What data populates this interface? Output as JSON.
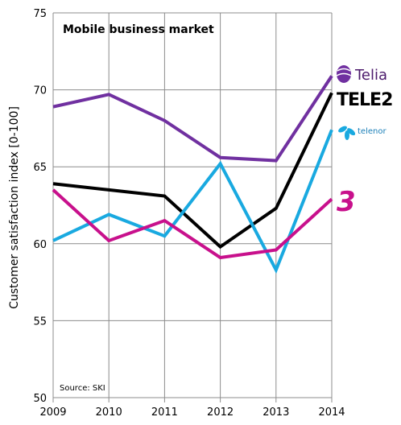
{
  "chart_data": {
    "type": "line",
    "title": "Mobile business market",
    "ylabel": "Customer satisfaction index [0-100]",
    "xlabel": "",
    "x": [
      "2009",
      "2010",
      "2011",
      "2012",
      "2013",
      "2014"
    ],
    "ylim": [
      50,
      75
    ],
    "yticks": [
      "50",
      "55",
      "60",
      "65",
      "70",
      "75"
    ],
    "grid": "horizontal",
    "source": "Source: SKI",
    "series": [
      {
        "name": "Telia",
        "color": "#7030a0",
        "values": [
          68.9,
          69.7,
          68.0,
          65.6,
          65.4,
          70.9
        ]
      },
      {
        "name": "TELE2",
        "color": "#000000",
        "values": [
          63.9,
          63.5,
          63.1,
          59.8,
          62.3,
          69.8
        ]
      },
      {
        "name": "telenor",
        "color": "#19a9e0",
        "values": [
          60.2,
          61.9,
          60.5,
          65.2,
          58.3,
          67.4
        ]
      },
      {
        "name": "3",
        "color": "#c8108c",
        "values": [
          63.5,
          60.2,
          61.5,
          59.1,
          59.6,
          62.9
        ]
      }
    ]
  }
}
